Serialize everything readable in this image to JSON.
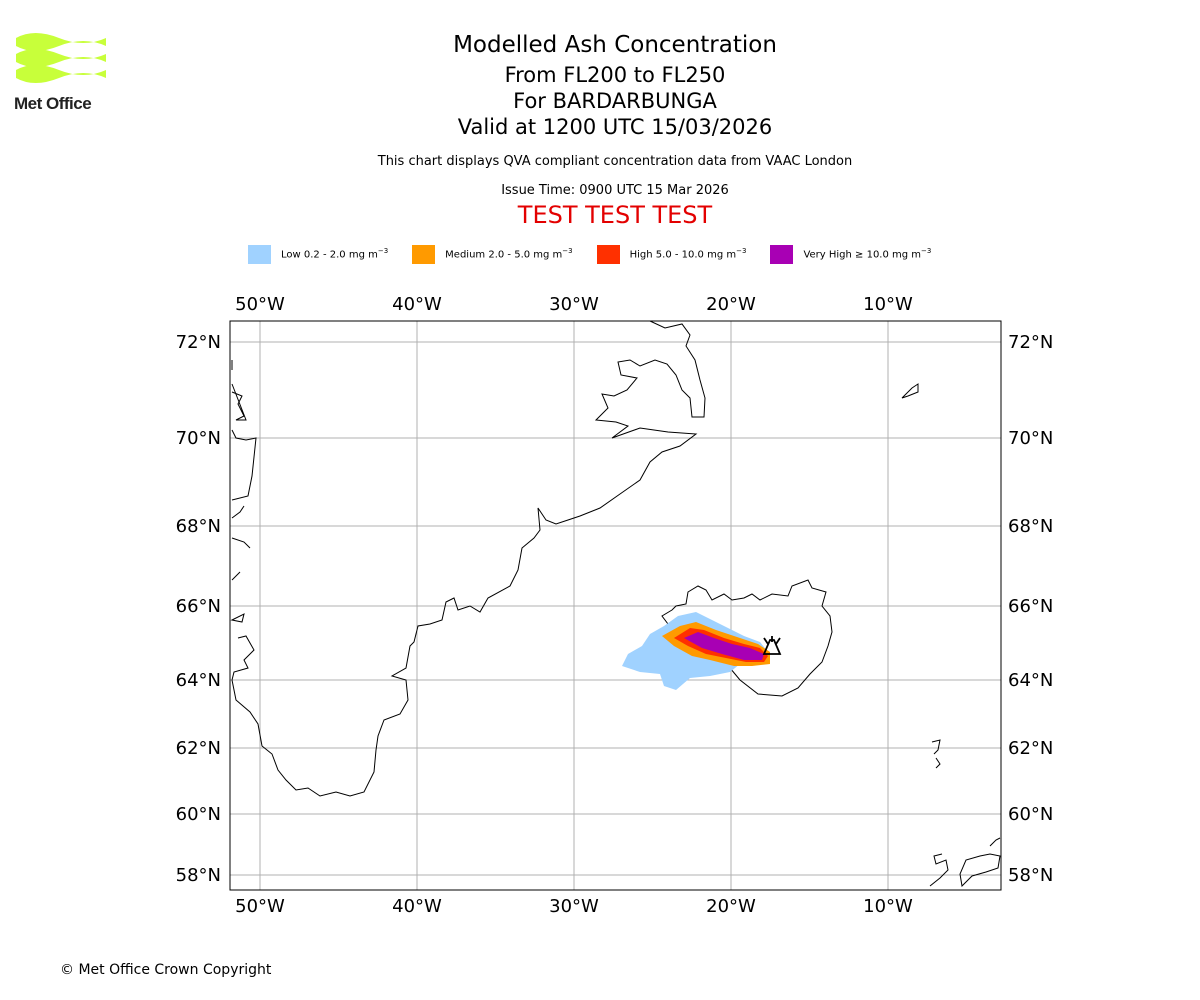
{
  "logo": {
    "text": "Met Office",
    "wave_color": "#c8ff3a"
  },
  "title": {
    "line1": "Modelled Ash Concentration",
    "line2": "From FL200 to FL250",
    "line3": "For BARDARBUNGA",
    "line4": "Valid at 1200 UTC 15/03/2026"
  },
  "subtitle": "This chart displays QVA compliant concentration data from VAAC London",
  "issue_time": "Issue Time: 0900 UTC 15 Mar 2026",
  "test_banner": "TEST TEST TEST",
  "legend": [
    {
      "label": "Low 0.2 - 2.0 mg m",
      "color": "#a0d2ff"
    },
    {
      "label": "Medium 2.0 - 5.0 mg m",
      "color": "#ff9a00"
    },
    {
      "label": "High 5.0 - 10.0 mg m",
      "color": "#ff3000"
    },
    {
      "label": "Very High  ≥  10.0 mg m",
      "color": "#a800b4"
    }
  ],
  "legend_unit_exp": "−3",
  "map": {
    "lon_labels": [
      "50°W",
      "40°W",
      "30°W",
      "20°W",
      "10°W"
    ],
    "lat_labels": [
      "72°N",
      "70°N",
      "68°N",
      "66°N",
      "64°N",
      "62°N",
      "60°N",
      "58°N"
    ]
  },
  "copyright": "© Met Office Crown Copyright"
}
